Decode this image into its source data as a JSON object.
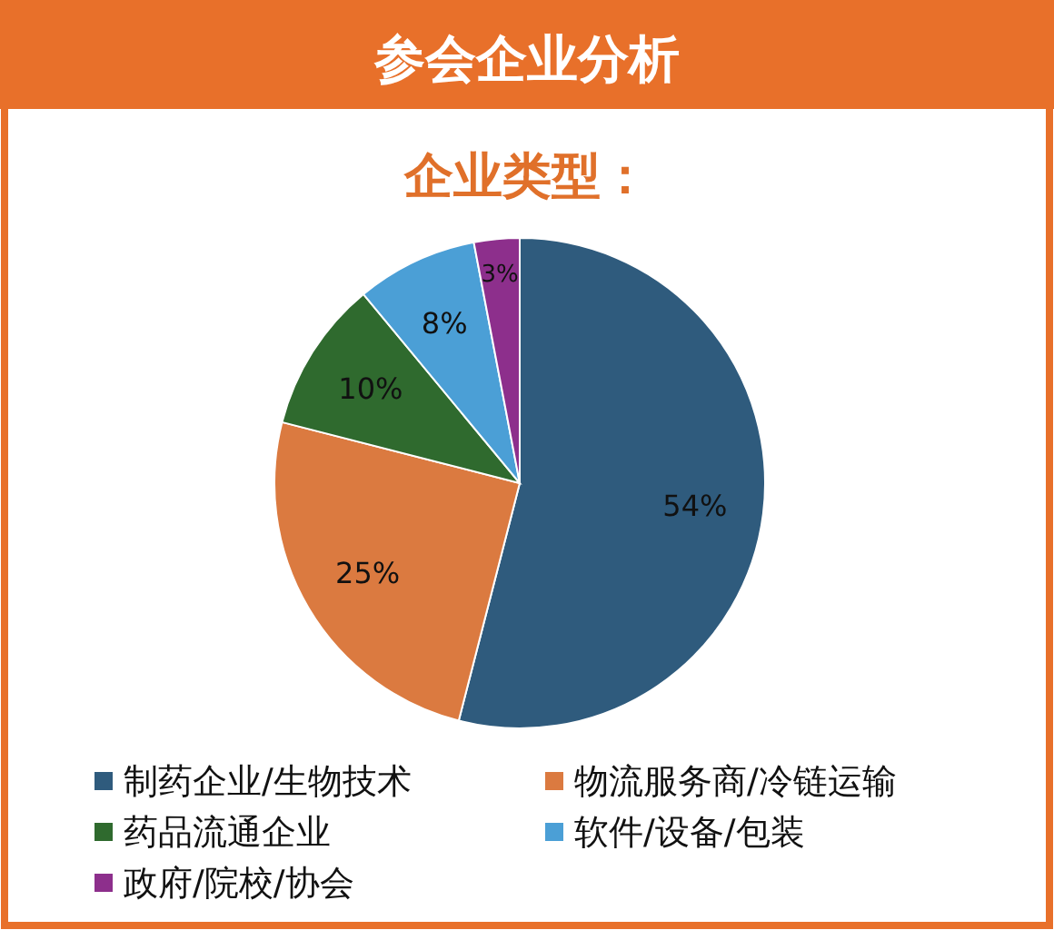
{
  "chart_data": {
    "type": "pie",
    "title": "参会企业分析",
    "subtitle": "企业类型：",
    "categories": [
      "制药企业/生物技术",
      "物流服务商/冷链运输",
      "药品流通企业",
      "软件/设备/包装",
      "政府/院校/协会"
    ],
    "values": [
      54,
      25,
      10,
      8,
      3
    ],
    "value_labels": [
      "54%",
      "25%",
      "10%",
      "8%",
      "3%"
    ],
    "colors": [
      "#2f5b7d",
      "#db7a40",
      "#2f6a2e",
      "#4b9fd6",
      "#8d2f8c"
    ],
    "legend": "bottom"
  }
}
